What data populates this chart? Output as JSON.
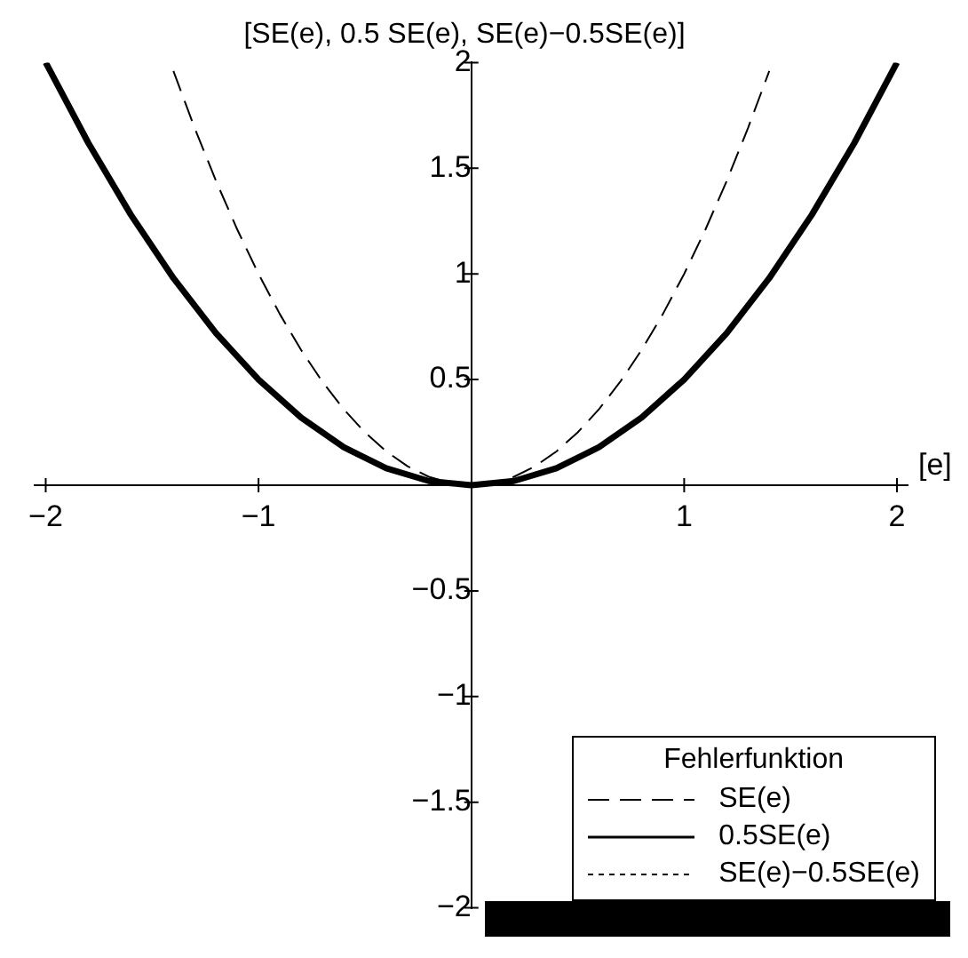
{
  "chart_data": {
    "type": "line",
    "title": "[SE(e), 0.5 SE(e), SE(e)−0.5SE(e)]",
    "xlabel": "[e]",
    "legend_title": "Fehlerfunktion",
    "legend": "bottom right",
    "grid": false,
    "marker": "none",
    "xlim": [
      -2.05,
      2.05
    ],
    "ylim": [
      -2,
      2
    ],
    "xticks": [
      {
        "value": -2,
        "label": "−2"
      },
      {
        "value": -1,
        "label": "−1"
      },
      1,
      2
    ],
    "yticks": [
      {
        "value": -2,
        "label": "−2"
      },
      {
        "value": -1.5,
        "label": "−1.5"
      },
      {
        "value": -1,
        "label": "−1"
      },
      {
        "value": -0.5,
        "label": "−0.5"
      },
      0.5,
      1,
      1.5,
      2
    ],
    "series": [
      {
        "name": "SE(e)",
        "color": "#000000",
        "line_style": "dashed",
        "x": [
          -1.4,
          -1.3,
          -1.2,
          -1.1,
          -1,
          -0.9,
          -0.8,
          -0.7,
          -0.6,
          -0.5,
          -0.4,
          -0.3,
          -0.2,
          -0.1,
          0,
          0.1,
          0.2,
          0.3,
          0.4,
          0.5,
          0.6,
          0.7,
          0.8,
          0.9,
          1,
          1.1,
          1.2,
          1.3,
          1.4
        ],
        "values": [
          1.96,
          1.69,
          1.44,
          1.21,
          1,
          0.81,
          0.64,
          0.49,
          0.36,
          0.25,
          0.16,
          0.09,
          0.04,
          0.01,
          0,
          0.01,
          0.04,
          0.09,
          0.16,
          0.25,
          0.36,
          0.49,
          0.64,
          0.81,
          1,
          1.21,
          1.44,
          1.69,
          1.96
        ]
      },
      {
        "name": "0.5SE(e)",
        "color": "#000000",
        "line_style": "solid",
        "x": [
          -2,
          -1.8,
          -1.6,
          -1.4,
          -1.2,
          -1,
          -0.8,
          -0.6,
          -0.4,
          -0.2,
          0,
          0.2,
          0.4,
          0.6,
          0.8,
          1,
          1.2,
          1.4,
          1.6,
          1.8,
          2
        ],
        "values": [
          2,
          1.62,
          1.28,
          0.98,
          0.72,
          0.5,
          0.32,
          0.18,
          0.08,
          0.02,
          0,
          0.02,
          0.08,
          0.18,
          0.32,
          0.5,
          0.72,
          0.98,
          1.28,
          1.62,
          2
        ]
      },
      {
        "name": "SE(e)−0.5SE(e)",
        "color": "#000000",
        "line_style": "dotted"
      }
    ]
  }
}
